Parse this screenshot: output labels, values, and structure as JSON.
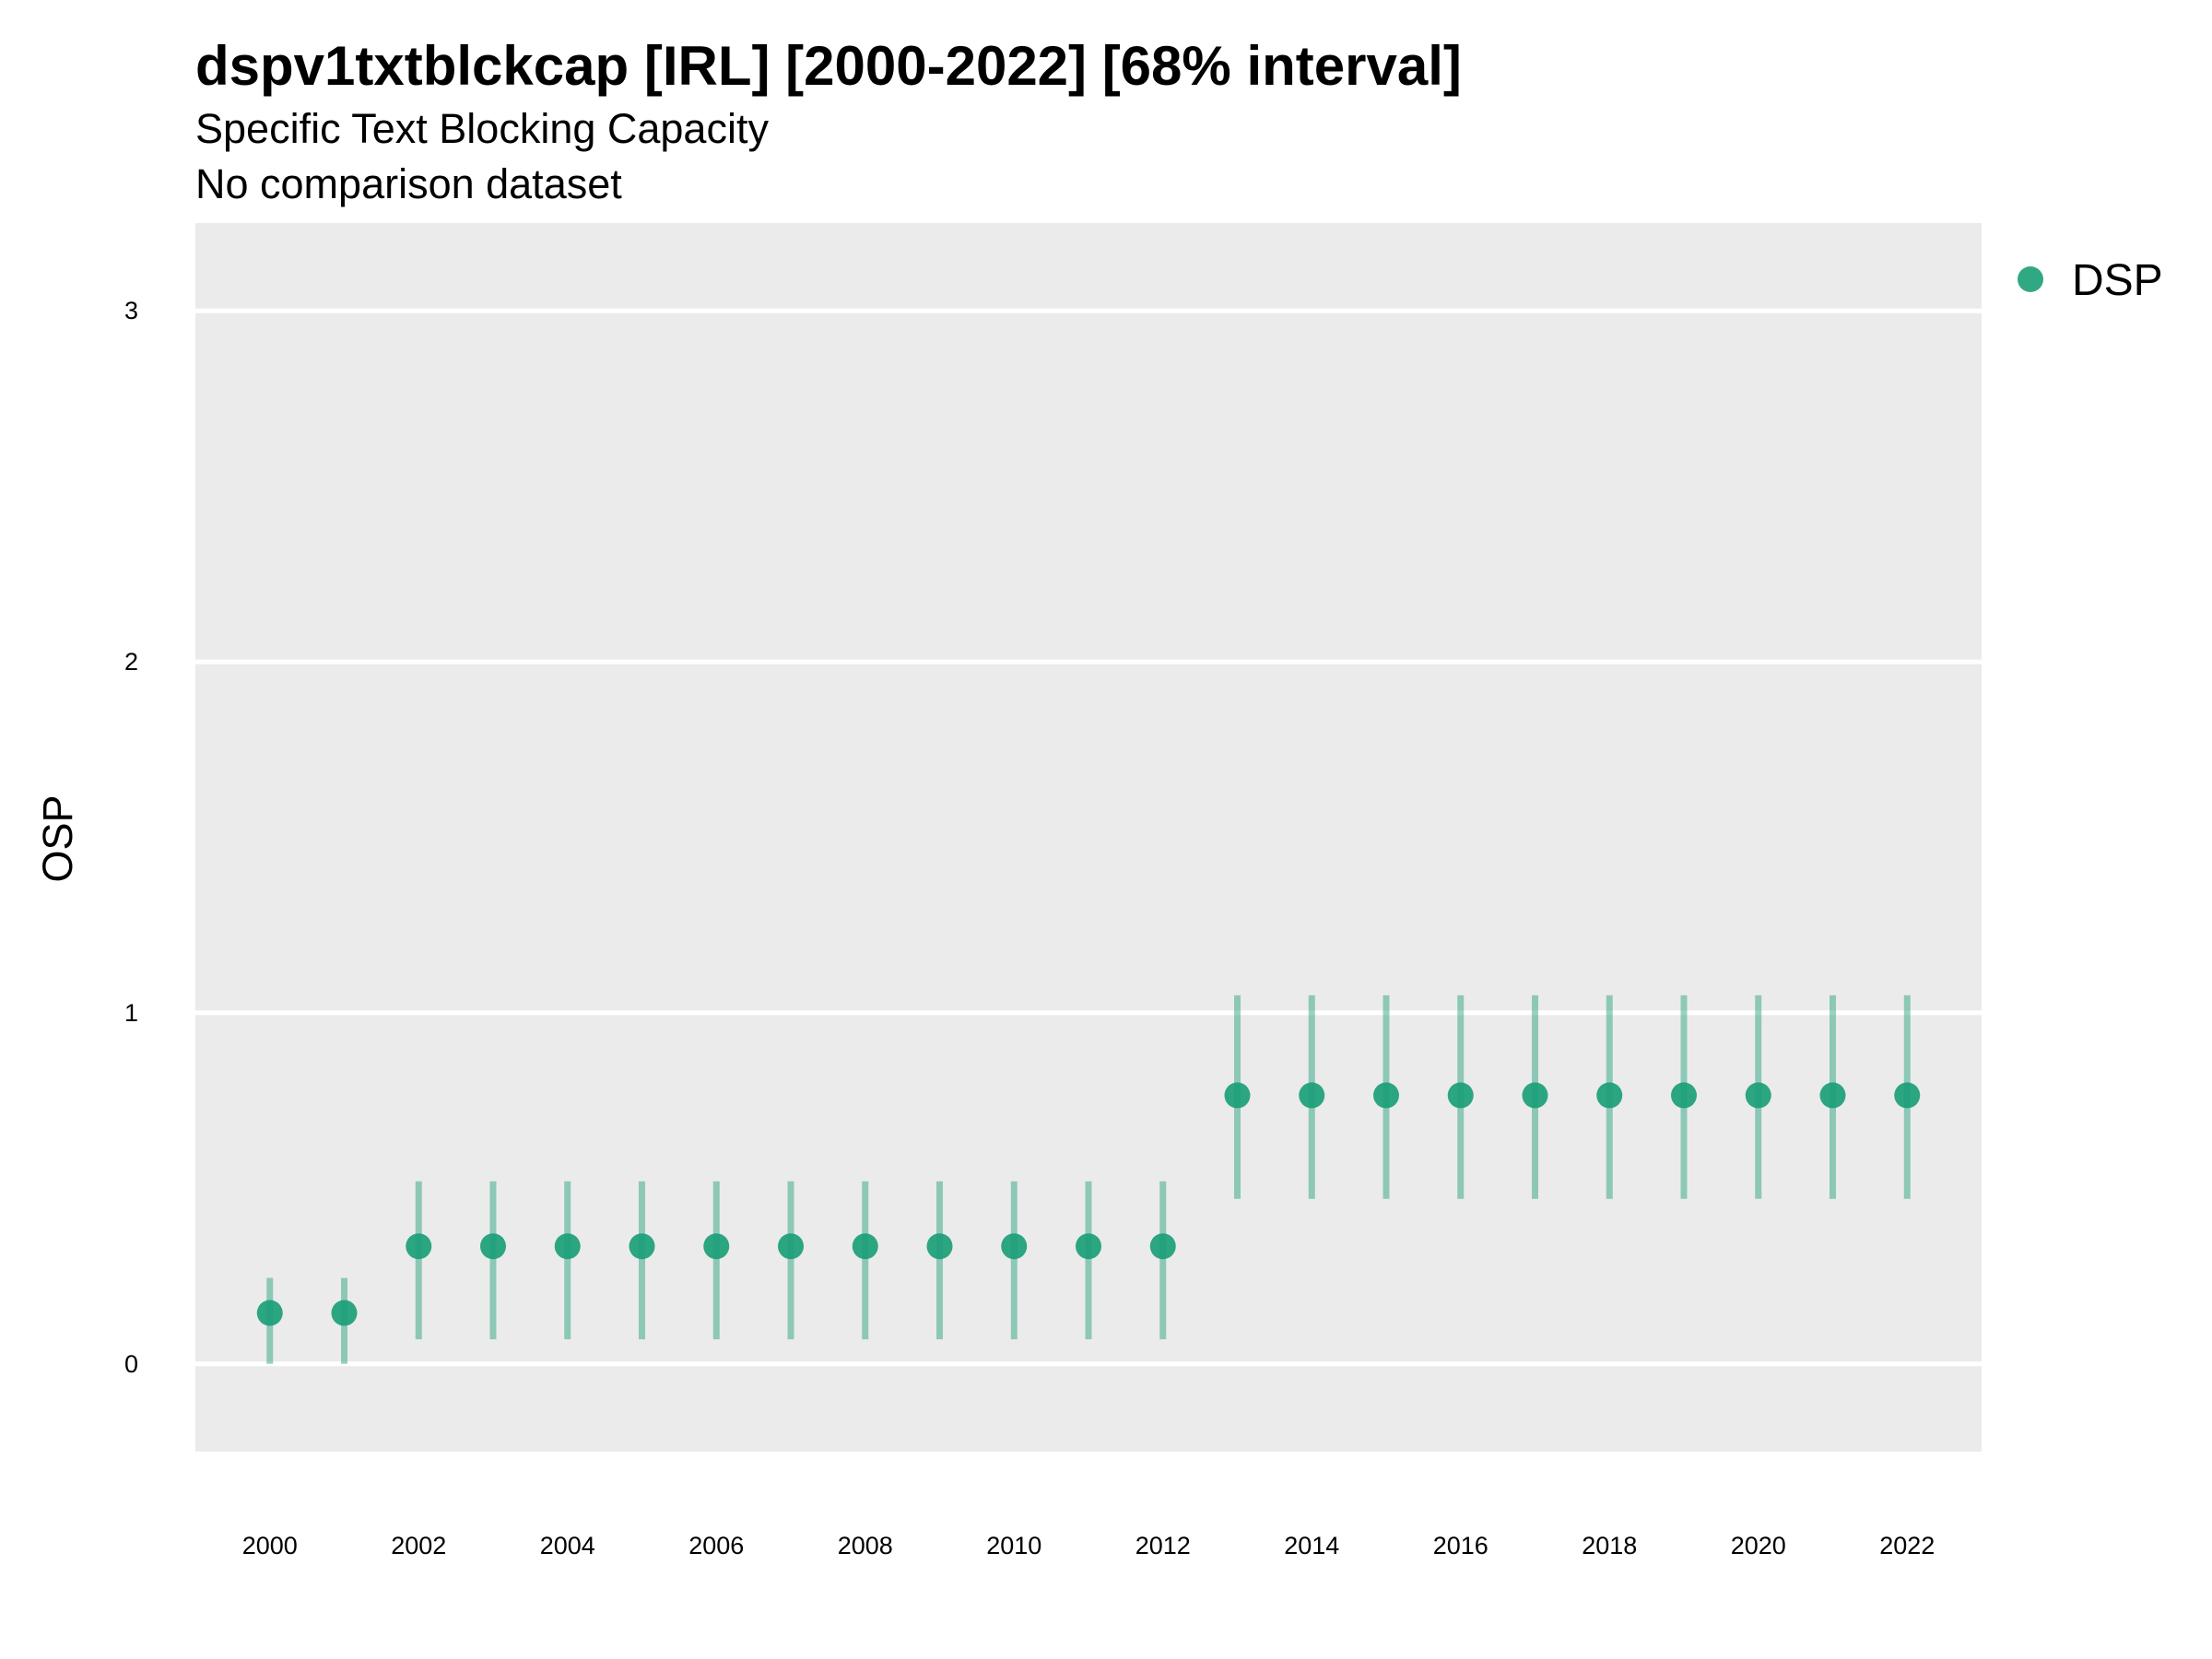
{
  "chart_data": {
    "type": "scatter",
    "title": "dspv1txtblckcap [IRL] [2000-2022] [68% interval]",
    "subtitle": "Specific Text Blocking Capacity",
    "subtitle2": "No comparison dataset",
    "xlabel": "",
    "ylabel": "OSP",
    "xlim": [
      1999,
      2023
    ],
    "ylim": [
      -0.25,
      3.25
    ],
    "x_ticks": [
      2000,
      2002,
      2004,
      2006,
      2008,
      2010,
      2012,
      2014,
      2016,
      2018,
      2020,
      2022
    ],
    "y_ticks": [
      0,
      1,
      2,
      3
    ],
    "grid": true,
    "legend_position": "top-right",
    "series": [
      {
        "name": "DSP",
        "color": "#1b9e77",
        "x": [
          2000,
          2001,
          2002,
          2003,
          2004,
          2005,
          2006,
          2007,
          2008,
          2009,
          2010,
          2011,
          2012,
          2013,
          2014,
          2015,
          2016,
          2017,
          2018,
          2019,
          2020,
          2021,
          2022
        ],
        "y": [
          0.145,
          0.145,
          0.335,
          0.335,
          0.335,
          0.335,
          0.335,
          0.335,
          0.335,
          0.335,
          0.335,
          0.335,
          0.335,
          0.765,
          0.765,
          0.765,
          0.765,
          0.765,
          0.765,
          0.765,
          0.765,
          0.765,
          0.765
        ],
        "lower": [
          0.0,
          0.0,
          0.07,
          0.07,
          0.07,
          0.07,
          0.07,
          0.07,
          0.07,
          0.07,
          0.07,
          0.07,
          0.07,
          0.47,
          0.47,
          0.47,
          0.47,
          0.47,
          0.47,
          0.47,
          0.47,
          0.47,
          0.47
        ],
        "upper": [
          0.245,
          0.245,
          0.52,
          0.52,
          0.52,
          0.52,
          0.52,
          0.52,
          0.52,
          0.52,
          0.52,
          0.52,
          0.52,
          1.05,
          1.05,
          1.05,
          1.05,
          1.05,
          1.05,
          1.05,
          1.05,
          1.05,
          1.05
        ]
      }
    ]
  }
}
